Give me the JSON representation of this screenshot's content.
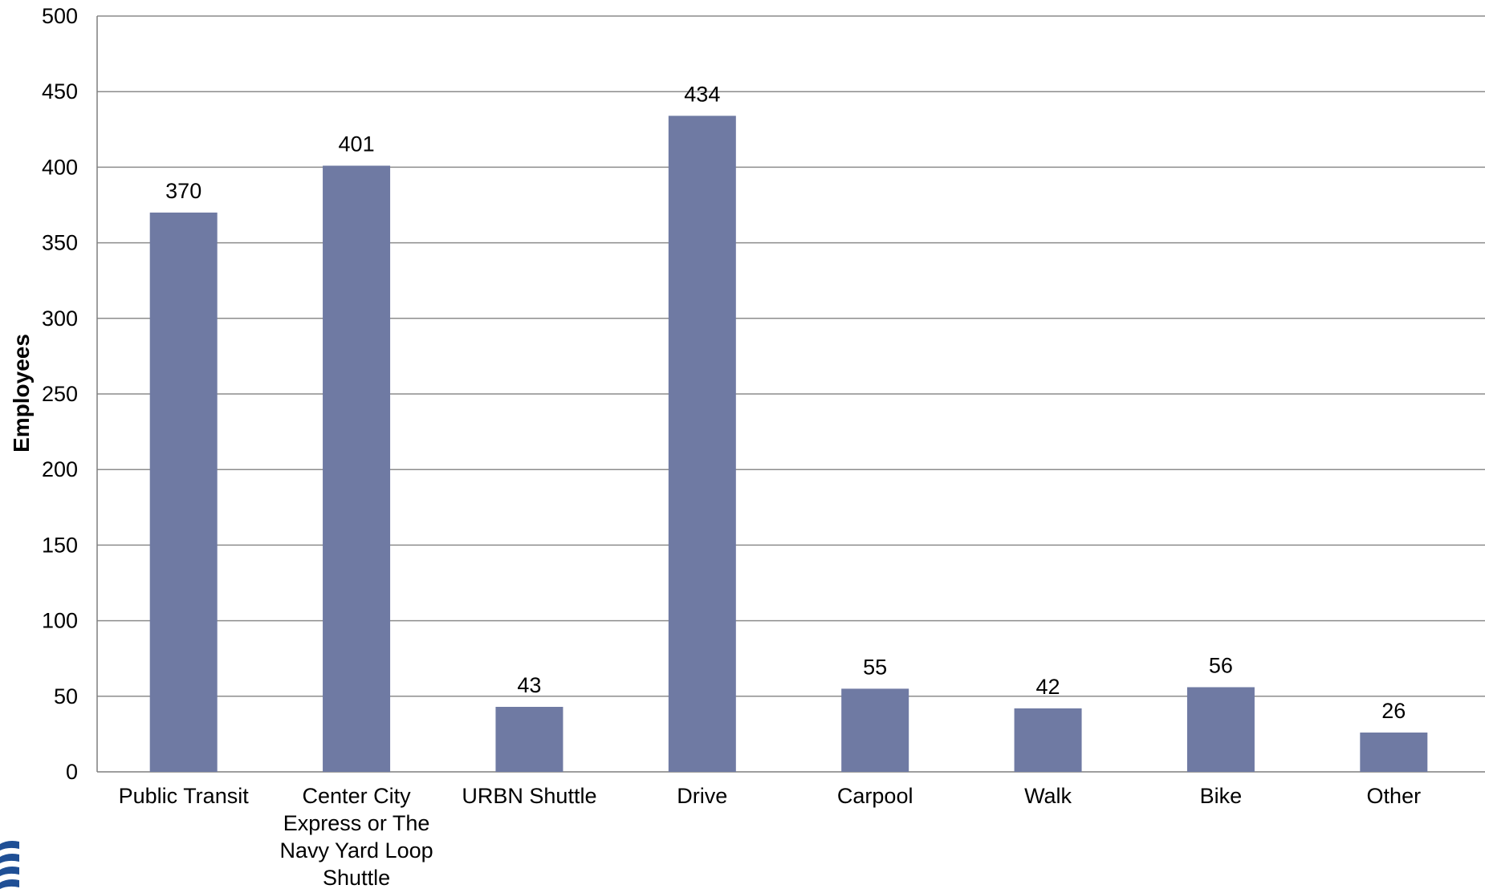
{
  "chart_data": {
    "type": "bar",
    "categories": [
      [
        "Public Transit"
      ],
      [
        "Center City",
        "Express or The",
        "Navy Yard Loop",
        "Shuttle"
      ],
      [
        "URBN Shuttle"
      ],
      [
        "Drive"
      ],
      [
        "Carpool"
      ],
      [
        "Walk"
      ],
      [
        "Bike"
      ],
      [
        "Other"
      ]
    ],
    "values": [
      370,
      401,
      43,
      434,
      55,
      42,
      56,
      26
    ],
    "data_labels": [
      "370",
      "401",
      "43",
      "434",
      "55",
      "42",
      "56",
      "26"
    ],
    "ylabel": "Employees",
    "ylim": [
      0,
      500
    ],
    "yticks": [
      0,
      50,
      100,
      150,
      200,
      250,
      300,
      350,
      400,
      450,
      500
    ],
    "grid": true,
    "bar_color": "#6f7aa3",
    "grid_color": "#8c8c8c",
    "axis_color": "#7f7f7f"
  },
  "decoration": {
    "logo_color": "#1f4f95"
  }
}
